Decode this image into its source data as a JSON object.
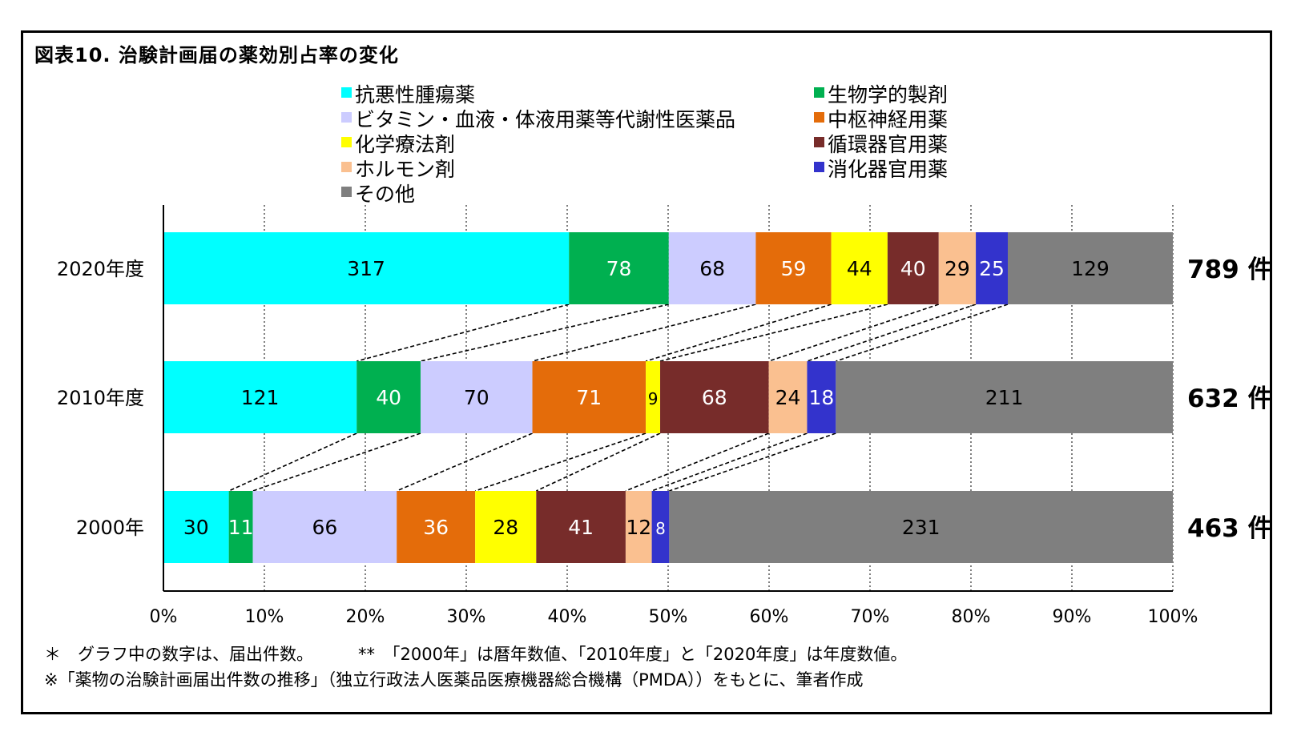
{
  "chart_data": {
    "type": "bar",
    "orientation": "horizontal",
    "stacked": "percent",
    "title": "図表10.  治験計画届の薬効別占率の変化",
    "categories": [
      "2020年度",
      "2010年度",
      "2000年"
    ],
    "totals": [
      "789 件",
      "632 件",
      "463 件"
    ],
    "series": [
      {
        "name": "抗悪性腫瘍薬",
        "color": "#00ffff",
        "values": [
          317,
          121,
          30
        ]
      },
      {
        "name": "生物学的製剤",
        "color": "#00b050",
        "values": [
          78,
          40,
          11
        ]
      },
      {
        "name": "ビタミン・血液・体液用薬等代謝性医薬品",
        "color": "#ccccff",
        "values": [
          68,
          70,
          66
        ]
      },
      {
        "name": "中枢神経用薬",
        "color": "#e46c0a",
        "values": [
          59,
          71,
          36
        ]
      },
      {
        "name": "化学療法剤",
        "color": "#ffff00",
        "values": [
          44,
          9,
          28
        ]
      },
      {
        "name": "循環器官用薬",
        "color": "#772c2a",
        "values": [
          40,
          68,
          41
        ]
      },
      {
        "name": "ホルモン剤",
        "color": "#fac090",
        "values": [
          29,
          24,
          12
        ]
      },
      {
        "name": "消化器官用薬",
        "color": "#3333cc",
        "values": [
          25,
          18,
          8
        ]
      },
      {
        "name": "その他",
        "color": "#7f7f7f",
        "values": [
          129,
          211,
          231
        ]
      }
    ],
    "xlim": [
      0,
      100
    ],
    "xticks": [
      "0%",
      "10%",
      "20%",
      "30%",
      "40%",
      "50%",
      "60%",
      "70%",
      "80%",
      "90%",
      "100%"
    ],
    "grid": "vertical dotted",
    "legend": "top, two columns",
    "connector_lines": "dashed lines joining segment boundaries between bars"
  },
  "notes": {
    "line1a": "＊　グラフ中の数字は、届出件数。",
    "line1b": "**　「2000年」は暦年数値、「2010年度」と「2020年度」は年度数値。",
    "line2": "※「薬物の治験計画届出件数の推移」（独立行政法人医薬品医療機器総合機構（PMDA））をもとに、筆者作成"
  }
}
